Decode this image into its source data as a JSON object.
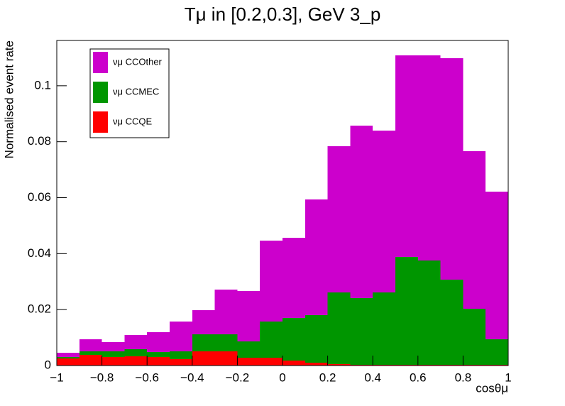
{
  "chart_data": {
    "type": "histogram",
    "stacked": true,
    "title": "Tμ in [0.2,0.3], GeV 3_p",
    "x_label": "cosθμ",
    "y_label": "Normalised event rate",
    "bins": [
      -1,
      -0.9,
      -0.8,
      -0.7,
      -0.6,
      -0.5,
      -0.4,
      -0.3,
      -0.2,
      -0.1,
      0,
      0.1,
      0.2,
      0.3,
      0.4,
      0.5,
      0.6,
      0.7,
      0.8,
      0.9,
      1
    ],
    "series": [
      {
        "name": "νμ CCQE",
        "color": "#ff0000",
        "values": [
          0.0025,
          0.0038,
          0.003,
          0.0033,
          0.003,
          0.0023,
          0.0051,
          0.0051,
          0.0028,
          0.0028,
          0.0018,
          0.001,
          0.0005,
          0.0003,
          0.0003,
          0.0003,
          0.0003,
          0.0003,
          0.0003,
          0.0003
        ]
      },
      {
        "name": "νμ CCMEC",
        "color": "#009600",
        "values": [
          0.0005,
          0.0013,
          0.0021,
          0.0025,
          0.0018,
          0.0028,
          0.0061,
          0.0061,
          0.0058,
          0.0129,
          0.0152,
          0.017,
          0.0256,
          0.0238,
          0.0258,
          0.0385,
          0.0373,
          0.0304,
          0.02,
          0.0091
        ]
      },
      {
        "name": "νμ CCOther",
        "color": "#cc00cc",
        "values": [
          0.0016,
          0.0043,
          0.0033,
          0.0051,
          0.0071,
          0.0106,
          0.0086,
          0.016,
          0.018,
          0.029,
          0.0287,
          0.0414,
          0.0523,
          0.0617,
          0.0579,
          0.0721,
          0.0733,
          0.0792,
          0.0563,
          0.0528
        ]
      }
    ],
    "xlim": [
      -1,
      1
    ],
    "xticks": [
      {
        "value": -1,
        "label": "−1"
      },
      {
        "value": -0.8,
        "label": "−0.8"
      },
      {
        "value": -0.6,
        "label": "−0.6"
      },
      {
        "value": -0.4,
        "label": "−0.4"
      },
      {
        "value": -0.2,
        "label": "−0.2"
      },
      0,
      0.2,
      0.4,
      0.6,
      0.8,
      1
    ],
    "ylim": [
      0,
      0.1162
    ],
    "yticks": [
      0,
      0.02,
      0.04,
      0.06,
      0.08,
      0.1
    ],
    "legend": "top-left",
    "grid": false
  }
}
